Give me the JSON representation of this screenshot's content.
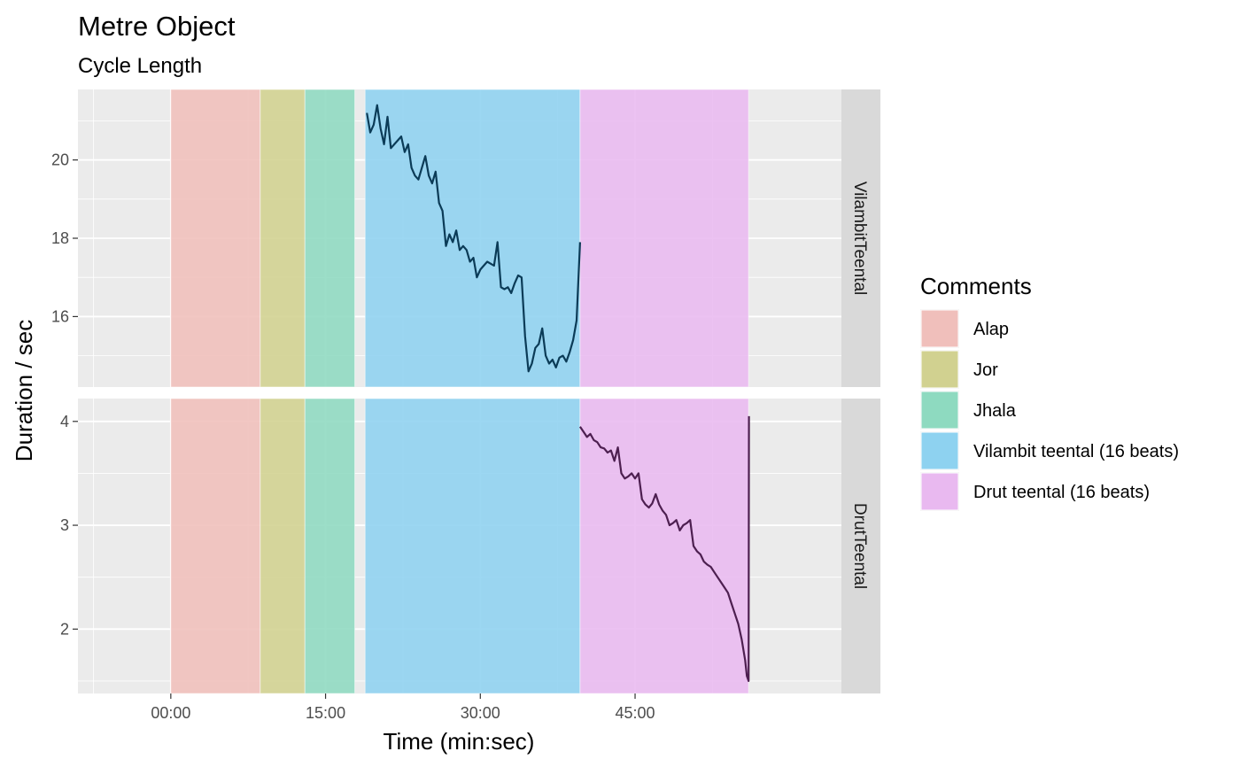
{
  "chart_data": {
    "type": "line",
    "title": "Metre Object",
    "subtitle": "Cycle Length",
    "xlabel": "Time (min:sec)",
    "ylabel": "Duration / sec",
    "x_unit": "seconds",
    "x_ticks": [
      {
        "value": 0,
        "label": "00:00"
      },
      {
        "value": 900,
        "label": "15:00"
      },
      {
        "value": 1800,
        "label": "30:00"
      },
      {
        "value": 2700,
        "label": "45:00"
      }
    ],
    "xlim": [
      -540,
      3900
    ],
    "grid": true,
    "legend": {
      "title": "Comments",
      "placement": "right",
      "items": [
        {
          "label": "Alap",
          "color": "#f0bfbb"
        },
        {
          "label": "Jor",
          "color": "#d1d190"
        },
        {
          "label": "Jhala",
          "color": "#8edac0"
        },
        {
          "label": "Vilambit teental (16 beats)",
          "color": "#8ed2f0"
        },
        {
          "label": "Drut teental (16 beats)",
          "color": "#e9b9f0"
        }
      ]
    },
    "sections": [
      {
        "label": "Alap",
        "start": 0,
        "end": 520,
        "color": "#f0bfbb"
      },
      {
        "label": "Jor",
        "start": 520,
        "end": 780,
        "color": "#d1d190"
      },
      {
        "label": "Jhala",
        "start": 780,
        "end": 1070,
        "color": "#8edac0"
      },
      {
        "label": "Vilambit teental (16 beats)",
        "start": 1130,
        "end": 2380,
        "color": "#8ed2f0"
      },
      {
        "label": "Drut teental (16 beats)",
        "start": 2380,
        "end": 3360,
        "color": "#e9b9f0"
      }
    ],
    "panels": [
      {
        "strip": "VilambitTeental",
        "line_color": "#0b3b57",
        "ylim": [
          14.2,
          21.8
        ],
        "y_ticks": [
          16,
          18,
          20
        ],
        "x": [
          1140,
          1160,
          1180,
          1200,
          1220,
          1240,
          1260,
          1280,
          1300,
          1320,
          1340,
          1360,
          1380,
          1400,
          1420,
          1440,
          1460,
          1480,
          1500,
          1520,
          1540,
          1560,
          1580,
          1600,
          1620,
          1640,
          1660,
          1680,
          1700,
          1720,
          1740,
          1760,
          1780,
          1800,
          1820,
          1840,
          1860,
          1880,
          1900,
          1920,
          1940,
          1960,
          1980,
          2000,
          2020,
          2040,
          2060,
          2080,
          2100,
          2120,
          2140,
          2160,
          2180,
          2200,
          2220,
          2240,
          2260,
          2280,
          2300,
          2320,
          2340,
          2360,
          2380
        ],
        "y": [
          21.2,
          20.7,
          20.9,
          21.4,
          20.8,
          20.4,
          21.1,
          20.3,
          20.4,
          20.5,
          20.6,
          20.2,
          20.4,
          19.8,
          19.6,
          19.5,
          19.8,
          20.1,
          19.6,
          19.4,
          19.7,
          18.9,
          18.7,
          17.8,
          18.1,
          17.9,
          18.2,
          17.7,
          17.8,
          17.7,
          17.4,
          17.5,
          17.0,
          17.2,
          17.3,
          17.4,
          17.35,
          17.3,
          17.9,
          16.75,
          16.7,
          16.75,
          16.6,
          16.85,
          17.05,
          17.0,
          15.5,
          14.6,
          14.8,
          15.2,
          15.3,
          15.7,
          15.0,
          14.8,
          14.9,
          14.7,
          14.95,
          15.0,
          14.85,
          15.1,
          15.4,
          15.9,
          17.9
        ]
      },
      {
        "strip": "DrutTeental",
        "line_color": "#4d1f50",
        "ylim": [
          1.38,
          4.22
        ],
        "y_ticks": [
          2,
          3,
          4
        ],
        "x": [
          2380,
          2400,
          2420,
          2440,
          2460,
          2480,
          2500,
          2520,
          2540,
          2560,
          2580,
          2600,
          2620,
          2640,
          2660,
          2680,
          2700,
          2720,
          2740,
          2760,
          2780,
          2800,
          2820,
          2840,
          2860,
          2880,
          2900,
          2920,
          2940,
          2960,
          2980,
          3000,
          3020,
          3040,
          3060,
          3080,
          3100,
          3120,
          3140,
          3160,
          3180,
          3200,
          3220,
          3240,
          3260,
          3280,
          3300,
          3320,
          3340,
          3350,
          3360,
          3362
        ],
        "y": [
          3.95,
          3.9,
          3.85,
          3.88,
          3.82,
          3.8,
          3.75,
          3.74,
          3.7,
          3.72,
          3.62,
          3.75,
          3.5,
          3.45,
          3.47,
          3.5,
          3.45,
          3.5,
          3.25,
          3.2,
          3.17,
          3.21,
          3.3,
          3.2,
          3.14,
          3.1,
          3.0,
          3.02,
          3.05,
          2.95,
          3.0,
          3.02,
          3.05,
          2.8,
          2.75,
          2.72,
          2.65,
          2.62,
          2.6,
          2.55,
          2.5,
          2.45,
          2.4,
          2.35,
          2.25,
          2.15,
          2.05,
          1.9,
          1.7,
          1.55,
          1.5,
          4.05
        ]
      }
    ]
  }
}
